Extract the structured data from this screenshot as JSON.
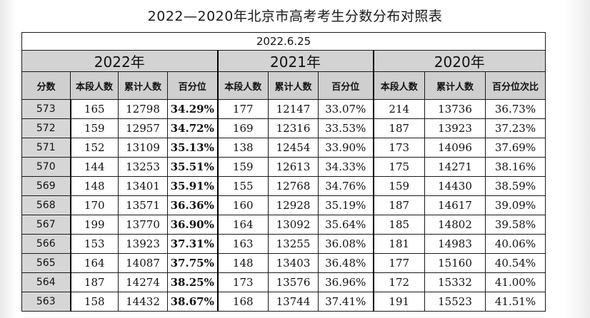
{
  "title": "2022—2020年北京市高考考生分数分布对照表",
  "date": "2022.6.25",
  "years": [
    "2022年",
    "2021年",
    "2020年"
  ],
  "headers": [
    "分数",
    "本段人数",
    "累计人数",
    "百分位",
    "本段人数",
    "累计人数",
    "百分位",
    "本段人数",
    "累计人数",
    "百分位次比"
  ],
  "rows": [
    [
      "573",
      "165",
      "12798",
      "34.29%",
      "177",
      "12147",
      "33.07%",
      "214",
      "13736",
      "36.73%"
    ],
    [
      "572",
      "159",
      "12957",
      "34.72%",
      "169",
      "12316",
      "33.53%",
      "187",
      "13923",
      "37.23%"
    ],
    [
      "571",
      "152",
      "13109",
      "35.13%",
      "138",
      "12454",
      "33.90%",
      "173",
      "14096",
      "37.69%"
    ],
    [
      "570",
      "144",
      "13253",
      "35.51%",
      "159",
      "12613",
      "34.33%",
      "175",
      "14271",
      "38.16%"
    ],
    [
      "569",
      "148",
      "13401",
      "35.91%",
      "155",
      "12768",
      "34.76%",
      "159",
      "14430",
      "38.59%"
    ],
    [
      "568",
      "170",
      "13571",
      "36.36%",
      "160",
      "12928",
      "35.19%",
      "187",
      "14617",
      "39.09%"
    ],
    [
      "567",
      "199",
      "13770",
      "36.90%",
      "164",
      "13092",
      "35.64%",
      "185",
      "14802",
      "39.58%"
    ],
    [
      "566",
      "153",
      "13923",
      "37.31%",
      "163",
      "13255",
      "36.08%",
      "181",
      "14983",
      "40.06%"
    ],
    [
      "565",
      "164",
      "14087",
      "37.75%",
      "148",
      "13403",
      "36.48%",
      "177",
      "15160",
      "40.54%"
    ],
    [
      "564",
      "187",
      "14274",
      "38.25%",
      "173",
      "13576",
      "36.96%",
      "172",
      "15332",
      "41.00%"
    ],
    [
      "563",
      "158",
      "14432",
      "38.67%",
      "168",
      "13744",
      "37.41%",
      "191",
      "15523",
      "41.51%"
    ]
  ]
}
